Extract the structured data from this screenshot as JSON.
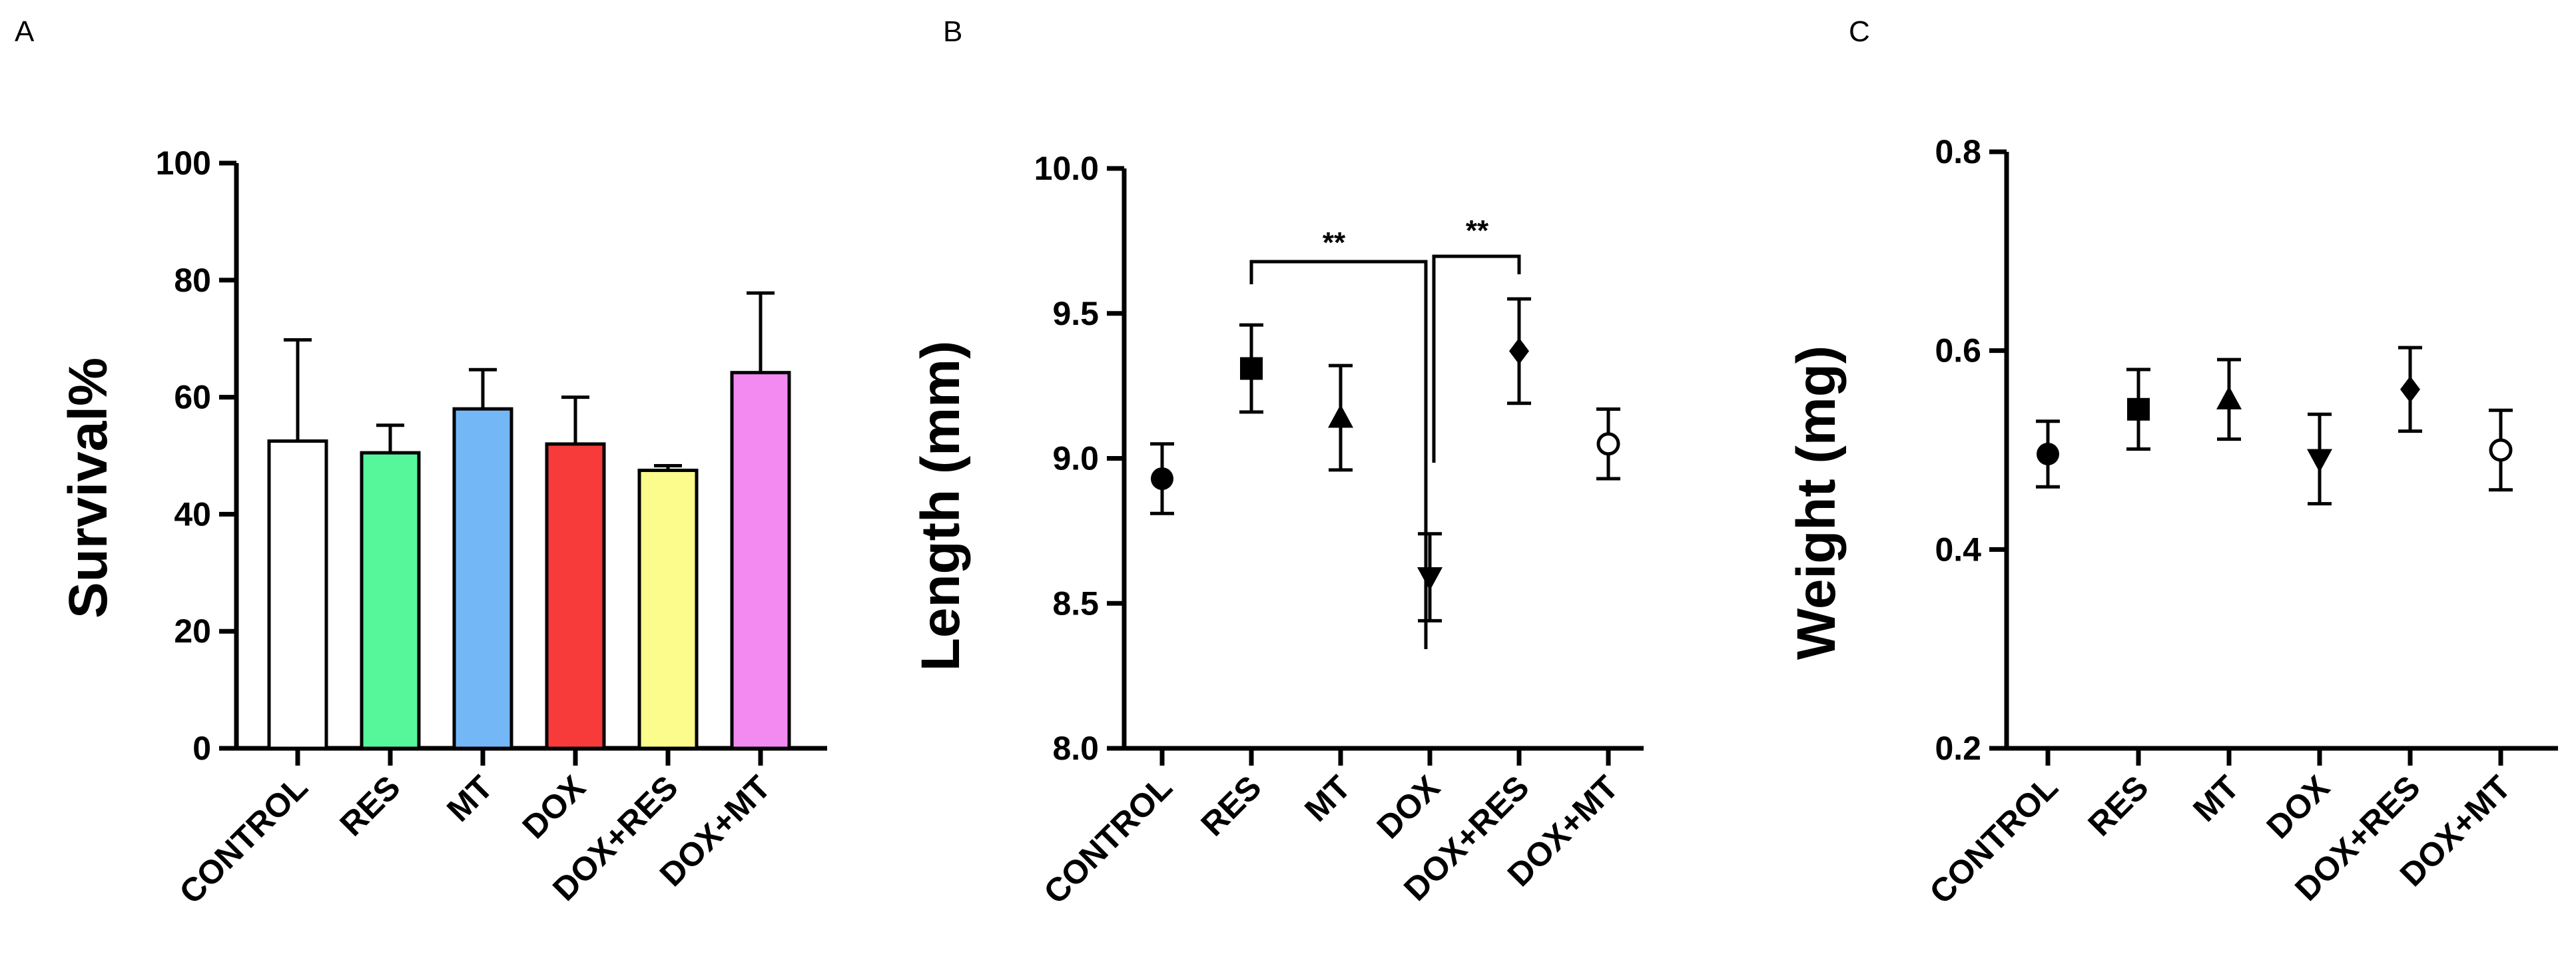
{
  "chart_data": [
    {
      "panel": "A",
      "type": "bar",
      "ylabel": "Survival%",
      "xlabel": "",
      "ylim": [
        0,
        100
      ],
      "yticks": [
        0,
        20,
        40,
        60,
        80,
        100
      ],
      "categories": [
        "CONTROL",
        "RES",
        "MT",
        "DOX",
        "DOX+RES",
        "DOX+MT"
      ],
      "values": [
        52.5,
        50.5,
        58,
        52,
        47.5,
        64.2
      ],
      "errors": [
        17.3,
        4.7,
        6.7,
        8,
        0.8,
        13.6
      ],
      "colors": [
        "#ffffff",
        "#55f79a",
        "#74b7f7",
        "#f73a3a",
        "#fcfc8c",
        "#f28af2"
      ]
    },
    {
      "panel": "B",
      "type": "scatter",
      "ylabel": "Length (mm)",
      "xlabel": "",
      "ylim": [
        8.0,
        10.0
      ],
      "yticks": [
        "8.0",
        "8.5",
        "9.0",
        "9.5",
        "10.0"
      ],
      "categories": [
        "CONTROL",
        "RES",
        "MT",
        "DOX",
        "DOX+RES",
        "DOX+MT"
      ],
      "values": [
        8.93,
        9.31,
        9.14,
        8.59,
        9.37,
        9.05
      ],
      "errors": [
        0.12,
        0.15,
        0.18,
        0.15,
        0.18,
        0.12
      ],
      "markers": [
        "circle",
        "square",
        "triangle-up",
        "triangle-down",
        "diamond",
        "circle-open"
      ],
      "annotations": [
        {
          "text": "**",
          "from": "RES",
          "to": "DOX"
        },
        {
          "text": "**",
          "from": "DOX",
          "to": "DOX+RES"
        }
      ]
    },
    {
      "panel": "C",
      "type": "scatter",
      "ylabel": "Weight (mg)",
      "xlabel": "",
      "ylim": [
        0.2,
        0.8
      ],
      "yticks": [
        "0.2",
        "0.4",
        "0.6",
        "0.8"
      ],
      "categories": [
        "CONTROL",
        "RES",
        "MT",
        "DOX",
        "DOX+RES",
        "DOX+MT"
      ],
      "values": [
        0.496,
        0.541,
        0.551,
        0.491,
        0.561,
        0.5
      ],
      "errors": [
        0.033,
        0.04,
        0.04,
        0.045,
        0.042,
        0.04
      ],
      "markers": [
        "circle",
        "square",
        "triangle-up",
        "triangle-down",
        "diamond",
        "circle-open"
      ]
    }
  ]
}
